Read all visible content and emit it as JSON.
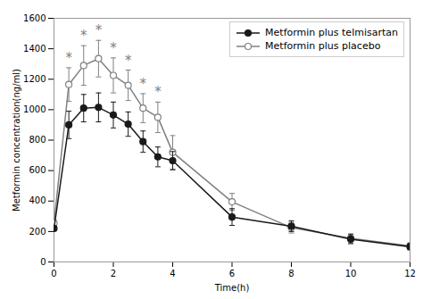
{
  "chart_data": {
    "type": "line",
    "x": [
      0,
      0.5,
      1,
      1.5,
      2,
      2.5,
      3,
      3.5,
      4,
      6,
      8,
      10,
      12
    ],
    "series": [
      {
        "name": "Metformin plus telmisartan",
        "color": "#1a1a1a",
        "marker": "circle",
        "values": [
          220,
          900,
          1010,
          1015,
          965,
          905,
          790,
          690,
          665,
          295,
          235,
          150,
          100
        ],
        "errors": [
          15,
          90,
          90,
          95,
          85,
          80,
          70,
          65,
          60,
          55,
          35,
          30,
          20
        ]
      },
      {
        "name": "Metformin plus placebo",
        "color": "#808080",
        "marker": "open_circle",
        "values": [
          255,
          1165,
          1290,
          1335,
          1225,
          1160,
          1010,
          950,
          720,
          395,
          225,
          155,
          105
        ],
        "errors": [
          20,
          110,
          130,
          120,
          115,
          100,
          95,
          100,
          110,
          55,
          35,
          30,
          20
        ]
      }
    ],
    "annotations": [
      {
        "text": "*",
        "x": 0.5,
        "y": 1310,
        "color": "#808080"
      },
      {
        "text": "*",
        "x": 1,
        "y": 1455,
        "color": "#808080"
      },
      {
        "text": "*",
        "x": 1.5,
        "y": 1490,
        "color": "#808080"
      },
      {
        "text": "*",
        "x": 2,
        "y": 1375,
        "color": "#808080"
      },
      {
        "text": "*",
        "x": 2.5,
        "y": 1295,
        "color": "#808080"
      },
      {
        "text": "*",
        "x": 3,
        "y": 1140,
        "color": "#808080"
      },
      {
        "text": "*",
        "x": 3.5,
        "y": 1085,
        "color": "#808080"
      }
    ],
    "xlabel": "Time(h)",
    "ylabel": "Metformin concentration(ng/ml)",
    "xlim": [
      0,
      12
    ],
    "xticks": [
      0,
      2,
      4,
      6,
      8,
      10,
      12
    ],
    "ylim": [
      0,
      1600
    ],
    "yticks": [
      0,
      200,
      400,
      600,
      800,
      1000,
      1200,
      1400,
      1600
    ],
    "legend": "upper right"
  }
}
